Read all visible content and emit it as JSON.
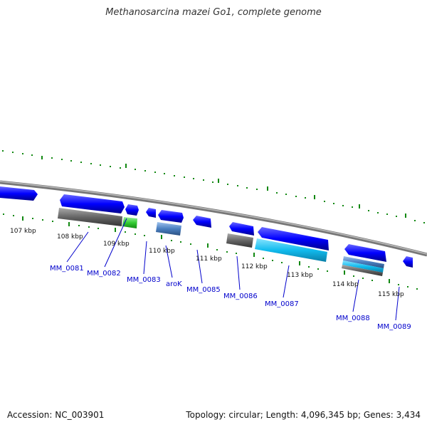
{
  "title": "Methanosarcina mazei Go1, complete genome",
  "footer": {
    "accession": "Accession: NC_003901",
    "summary": "Topology: circular; Length: 4,096,345 bp; Genes: 3,434"
  },
  "colors": {
    "backbone": "#888888",
    "cds": "#0000ff",
    "gene_label": "#0000cc",
    "tick": "#118811",
    "rna_gray": "#666666",
    "rna_green": "#33cc33",
    "rna_steel": "#4a7fc0",
    "rna_cyan": "#11bbee"
  },
  "scale_labels": [
    "107 kbp",
    "108 kbp",
    "109 kbp",
    "110 kbp",
    "111 kbp",
    "112 kbp",
    "113 kbp",
    "114 kbp",
    "115 kbp"
  ],
  "gene_labels": [
    "MM_0081",
    "MM_0082",
    "MM_0083",
    "aroK",
    "MM_0085",
    "MM_0086",
    "MM_0087",
    "MM_0088",
    "MM_0089"
  ]
}
